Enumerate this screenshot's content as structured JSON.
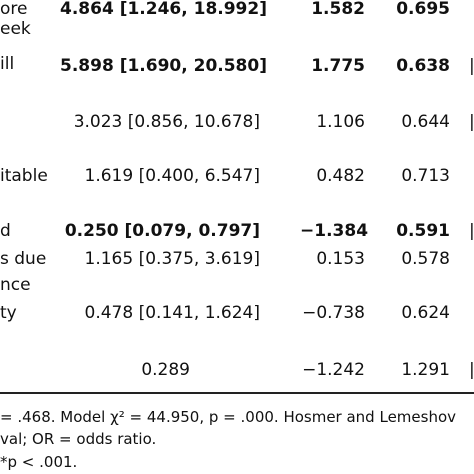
{
  "table": {
    "rows": [
      {
        "label": [
          "ore",
          "eek"
        ],
        "or_ci": "4.864 [1.246, 18.992]",
        "b": "1.582",
        "se": "0.695",
        "bold": true
      },
      {
        "label": [
          "ill"
        ],
        "or_ci": "5.898 [1.690, 20.580]",
        "b": "1.775",
        "se": "0.638",
        "bold": true
      },
      {
        "label": [],
        "or_ci": "3.023 [0.856, 10.678]",
        "b": "1.106",
        "se": "0.644",
        "bold": false
      },
      {
        "label": [
          "itable"
        ],
        "or_ci": "1.619 [0.400, 6.547]",
        "b": "0.482",
        "se": "0.713",
        "bold": false
      },
      {
        "label": [
          "d"
        ],
        "or_ci": "0.250 [0.079, 0.797]",
        "b": "−1.384",
        "se": "0.591",
        "bold": true
      },
      {
        "label": [
          "s due",
          "nce"
        ],
        "or_ci": "1.165 [0.375, 3.619]",
        "b": "0.153",
        "se": "0.578",
        "bold": false
      },
      {
        "label": [
          "ty"
        ],
        "or_ci": "0.478 [0.141, 1.624]",
        "b": "−0.738",
        "se": "0.624",
        "bold": false
      },
      {
        "label": [],
        "or_ci": "0.289",
        "b": "−1.242",
        "se": "1.291",
        "bold": false
      }
    ]
  },
  "notes": {
    "line1": "= .468. Model χ² = 44.950, p = .000. Hosmer and Lemeshov",
    "line2": "val; OR = odds ratio.",
    "line3": "*p < .001."
  }
}
